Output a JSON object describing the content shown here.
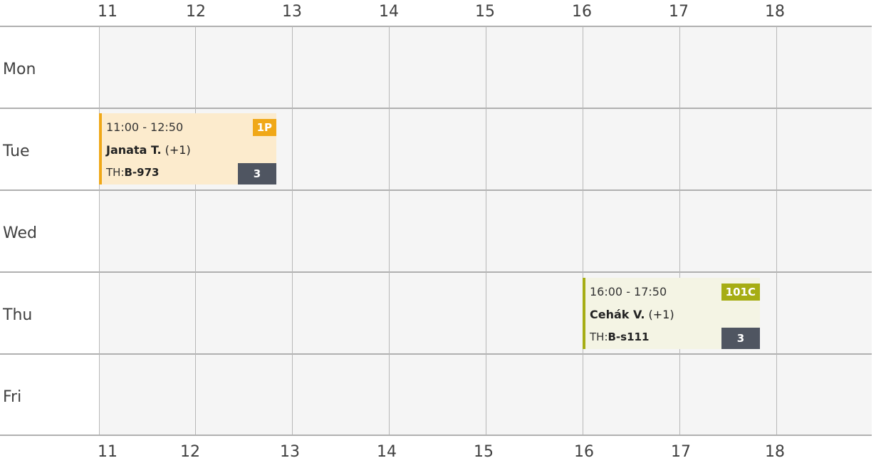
{
  "hours_top": [
    "11",
    "12",
    "13",
    "14",
    "15",
    "16",
    "17",
    "18"
  ],
  "hours_bottom": [
    "11",
    "12",
    "13",
    "14",
    "15",
    "16",
    "17",
    "18"
  ],
  "days": [
    "Mon",
    "Tue",
    "Wed",
    "Thu",
    "Fri"
  ],
  "events": [
    {
      "time": "11:00 - 12:50",
      "teacher_name": "Janata T.",
      "teacher_extra": "(+1)",
      "room_prefix": "TH:",
      "room": "B-973",
      "tag": "1P",
      "count": "3",
      "accent_color": "#f0a818",
      "bg_color": "#fcebcd"
    },
    {
      "time": "16:00 - 17:50",
      "teacher_name": "Cehák V.",
      "teacher_extra": "(+1)",
      "room_prefix": "TH:",
      "room": "B-s111",
      "tag": "101C",
      "count": "3",
      "accent_color": "#a6ad14",
      "bg_color": "#f4f4e4"
    }
  ]
}
